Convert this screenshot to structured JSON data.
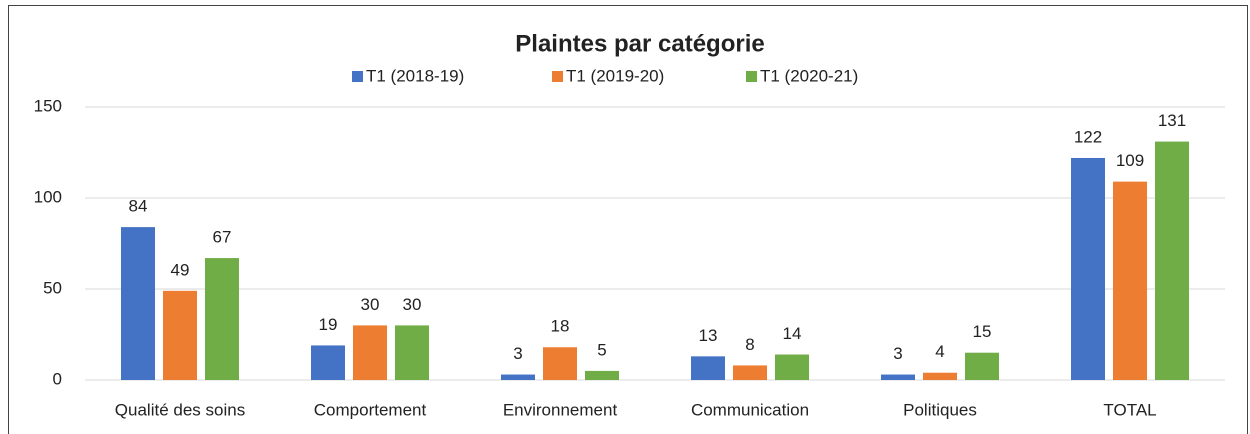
{
  "chart_data": {
    "type": "bar",
    "title": "Plaintes par catégorie",
    "categories": [
      "Qualité des soins",
      "Comportement",
      "Environnement",
      "Communication",
      "Politiques",
      "TOTAL"
    ],
    "series": [
      {
        "name": "T1 (2018-19)",
        "color": "#4472c4",
        "values": [
          84,
          19,
          3,
          13,
          3,
          122
        ]
      },
      {
        "name": "T1 (2019-20)",
        "color": "#ed7d31",
        "values": [
          49,
          30,
          18,
          8,
          4,
          109
        ]
      },
      {
        "name": "T1 (2020-21)",
        "color": "#70ad47",
        "values": [
          67,
          30,
          5,
          14,
          15,
          131
        ]
      }
    ],
    "ylim": [
      0,
      150
    ],
    "yticks": [
      0,
      50,
      100,
      150
    ],
    "grid": true,
    "legend": "top"
  }
}
